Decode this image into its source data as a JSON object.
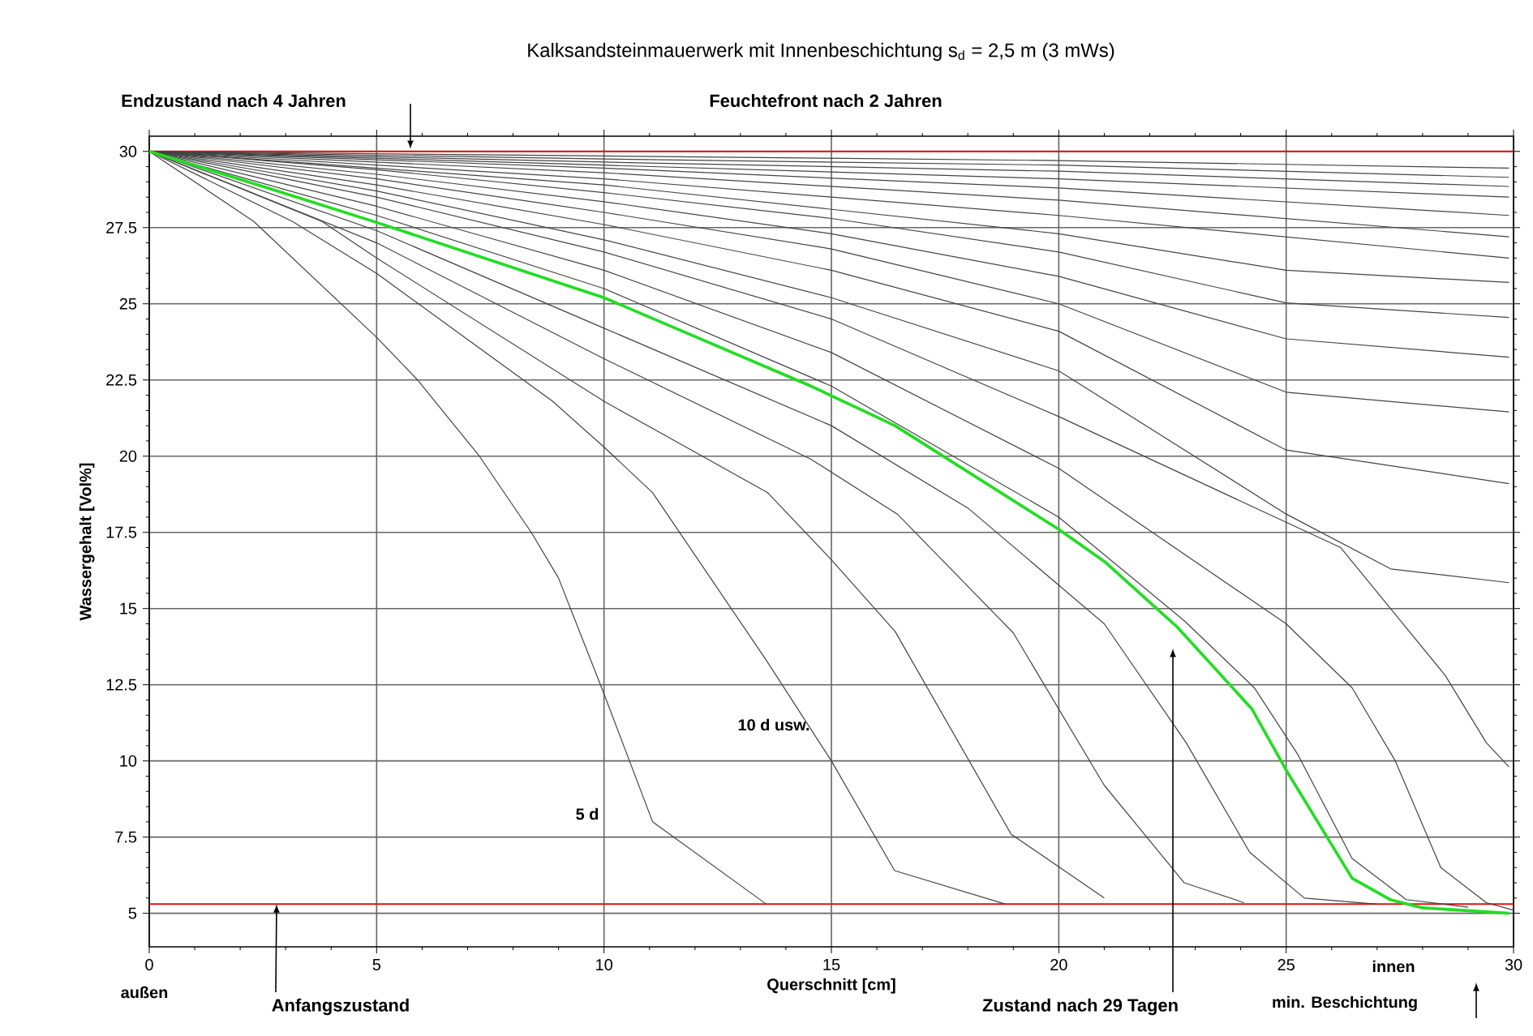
{
  "chart_data": {
    "type": "line",
    "title": "Kalksandsteinmauerwerk mit Innenbeschichtung s$_{d}$ = 2,5 m (3 mWs)",
    "xlabel": "Querschnitt [cm]",
    "ylabel": "Wassergehalt [Vol%]",
    "xlim": [
      0,
      30
    ],
    "ylim": [
      3.9,
      30.5
    ],
    "xticks": [
      0,
      5,
      10,
      15,
      20,
      25,
      30
    ],
    "yticks": [
      5,
      7.5,
      10,
      12.5,
      15,
      17.5,
      20,
      22.5,
      25,
      27.5,
      30
    ],
    "grid": true,
    "ref_lines": [
      {
        "axis": "y",
        "value": 30,
        "color": "#e01010"
      },
      {
        "axis": "y",
        "value": 5.3,
        "color": "#e01010"
      }
    ],
    "annotations": [
      "Endzustand nach 4 Jahren",
      "Feuchtefront nach 2 Jahren",
      "5 d",
      "10 d usw.",
      {
        "text": "Anfangszustand",
        "x": 2.8,
        "y": 5.3
      },
      "Zustand nach 29 Tagen",
      "außen",
      "innen",
      "min. Beschichtung"
    ],
    "series": [
      {
        "color": "#444444",
        "x": [
          0,
          2.3,
          5,
          5.9,
          7.26,
          8.4,
          9,
          10,
          11.07,
          13.57
        ],
        "values": [
          30,
          27.7,
          23.9,
          22.5,
          20,
          17.5,
          16,
          12.2,
          8,
          5.3
        ]
      },
      {
        "color": "#444444",
        "x": [
          0,
          3.15,
          5,
          8.87,
          10,
          11.07,
          13.57,
          15,
          16.39,
          18.83
        ],
        "values": [
          30,
          27.7,
          26,
          21.8,
          20.3,
          18.8,
          13.3,
          10,
          6.4,
          5.3
        ]
      },
      {
        "color": "#444444",
        "x": [
          0,
          3.8,
          5,
          10,
          13.6,
          15,
          16.4,
          18.95,
          21
        ],
        "values": [
          30,
          27.7,
          26.5,
          21.8,
          18.8,
          16.6,
          14.25,
          7.6,
          5.5
        ]
      },
      {
        "color": "#444444",
        "x": [
          0,
          5,
          10,
          14.55,
          16.45,
          19,
          21,
          22.76,
          24.07
        ],
        "values": [
          30,
          27,
          23.2,
          19.9,
          18.1,
          14.2,
          9.2,
          6,
          5.35
        ]
      },
      {
        "color": "#444444",
        "x": [
          0,
          5,
          10,
          15,
          18,
          21,
          22.8,
          24.2,
          25.4,
          27
        ],
        "values": [
          30,
          27.4,
          24.2,
          21,
          18.3,
          14.5,
          10.6,
          7,
          5.5,
          5.3
        ]
      },
      {
        "color": "#444444",
        "x": [
          0,
          5,
          10,
          15,
          20,
          22.76,
          24.3,
          25.26,
          26.45,
          27.64,
          29
        ],
        "values": [
          30,
          27.9,
          25.5,
          22.3,
          18,
          14.6,
          12.4,
          10.2,
          6.8,
          5.45,
          5.2
        ]
      },
      {
        "color": "#444444",
        "x": [
          0,
          5,
          10,
          15,
          20,
          25,
          26.45,
          27.4,
          28.4,
          29.4,
          30
        ],
        "values": [
          30,
          28.2,
          26.1,
          23.4,
          19.6,
          14.5,
          12.4,
          10,
          6.5,
          5.35,
          5.1
        ]
      },
      {
        "color": "#444444",
        "x": [
          0,
          5,
          10,
          15,
          20,
          26.2,
          28.5,
          29.4,
          29.9
        ],
        "values": [
          30,
          28.5,
          26.7,
          24.5,
          21.3,
          17,
          12.8,
          10.6,
          9.8
        ]
      },
      {
        "color": "#444444",
        "x": [
          0,
          5,
          10,
          15,
          20,
          25,
          27.3,
          29.9
        ],
        "values": [
          30,
          28.7,
          27.1,
          25.2,
          22.8,
          18.1,
          16.3,
          15.85
        ]
      },
      {
        "color": "#444444",
        "x": [
          0,
          5,
          10,
          15,
          20,
          25,
          29.9
        ],
        "values": [
          30,
          28.9,
          27.6,
          26.1,
          24.1,
          20.2,
          19.1
        ]
      },
      {
        "color": "#444444",
        "x": [
          0,
          5,
          10,
          15,
          20,
          25,
          29.9
        ],
        "values": [
          30,
          29.1,
          28,
          26.8,
          25,
          22.1,
          21.45
        ]
      },
      {
        "color": "#444444",
        "x": [
          0,
          5,
          10,
          15,
          20,
          25,
          29.9
        ],
        "values": [
          30,
          29.25,
          28.35,
          27.3,
          25.9,
          23.85,
          23.25
        ]
      },
      {
        "color": "#444444",
        "x": [
          0,
          5,
          10,
          15,
          20,
          25,
          29.9
        ],
        "values": [
          30,
          29.4,
          28.65,
          27.8,
          26.7,
          25.03,
          24.55
        ]
      },
      {
        "color": "#444444",
        "x": [
          0,
          10,
          20,
          25,
          29.9
        ],
        "values": [
          30,
          28.9,
          27.3,
          26.1,
          25.7
        ]
      },
      {
        "color": "#444444",
        "x": [
          0,
          10,
          20,
          29.9
        ],
        "values": [
          30,
          29.1,
          27.9,
          26.5
        ]
      },
      {
        "color": "#444444",
        "x": [
          0,
          10,
          20,
          29.9
        ],
        "values": [
          30,
          29.3,
          28.4,
          27.2
        ]
      },
      {
        "color": "#444444",
        "x": [
          0,
          10,
          20,
          29.9
        ],
        "values": [
          30,
          29.45,
          28.8,
          27.9
        ]
      },
      {
        "color": "#444444",
        "x": [
          0,
          10,
          20,
          29.9
        ],
        "values": [
          30,
          29.55,
          29.1,
          28.5
        ]
      },
      {
        "color": "#444444",
        "x": [
          0,
          10,
          20,
          29.9
        ],
        "values": [
          30,
          29.65,
          29.35,
          28.85
        ]
      },
      {
        "color": "#444444",
        "x": [
          0,
          10,
          20,
          29.9
        ],
        "values": [
          30,
          29.75,
          29.55,
          29.15
        ]
      },
      {
        "color": "#444444",
        "x": [
          0,
          10,
          20,
          29.9
        ],
        "values": [
          30,
          29.85,
          29.7,
          29.45
        ]
      },
      {
        "color": "#22dd22",
        "x": [
          0,
          2.5,
          5,
          10,
          14.55,
          16.4,
          20,
          21,
          22.6,
          24.25,
          25,
          26.45,
          27.3,
          28,
          29.9
        ],
        "values": [
          30,
          28.85,
          27.67,
          25.2,
          22.3,
          21,
          17.6,
          16.55,
          14.4,
          11.7,
          9.7,
          6.15,
          5.44,
          5.18,
          5
        ]
      }
    ]
  }
}
